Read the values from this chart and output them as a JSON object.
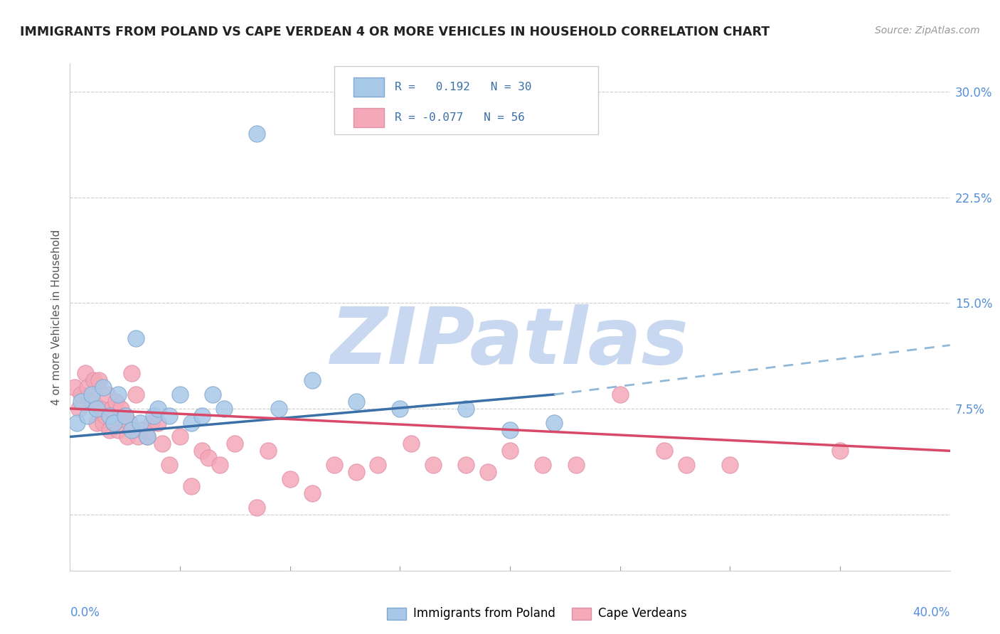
{
  "title": "IMMIGRANTS FROM POLAND VS CAPE VERDEAN 4 OR MORE VEHICLES IN HOUSEHOLD CORRELATION CHART",
  "source": "Source: ZipAtlas.com",
  "ylabel": "4 or more Vehicles in Household",
  "xlim": [
    0.0,
    40.0
  ],
  "ylim": [
    -4.0,
    32.0
  ],
  "ytick_positions": [
    0,
    7.5,
    15.0,
    22.5,
    30.0
  ],
  "ytick_labels": [
    "",
    "7.5%",
    "15.0%",
    "22.5%",
    "30.0%"
  ],
  "color_poland": "#a8c8e8",
  "color_cape_verde": "#f4a8b8",
  "trendline_poland_color": "#3a6fa8",
  "trendline_cape_verde_color": "#d84868",
  "trendline_poland_dashed_color": "#90b8d8",
  "watermark": "ZIPatlas",
  "watermark_color_zip": "#c8d8f0",
  "watermark_color_atlas": "#b8c8e0",
  "legend_label1": "Immigrants from Poland",
  "legend_label2": "Cape Verdeans",
  "poland_scatter": [
    [
      0.3,
      6.5
    ],
    [
      0.5,
      8.0
    ],
    [
      0.8,
      7.0
    ],
    [
      1.0,
      8.5
    ],
    [
      1.2,
      7.5
    ],
    [
      1.5,
      9.0
    ],
    [
      1.8,
      7.0
    ],
    [
      2.0,
      6.5
    ],
    [
      2.2,
      8.5
    ],
    [
      2.5,
      7.0
    ],
    [
      2.8,
      6.0
    ],
    [
      3.0,
      12.5
    ],
    [
      3.2,
      6.5
    ],
    [
      3.5,
      5.5
    ],
    [
      3.8,
      7.0
    ],
    [
      4.0,
      7.5
    ],
    [
      4.5,
      7.0
    ],
    [
      5.0,
      8.5
    ],
    [
      5.5,
      6.5
    ],
    [
      6.0,
      7.0
    ],
    [
      6.5,
      8.5
    ],
    [
      7.0,
      7.5
    ],
    [
      8.5,
      27.0
    ],
    [
      9.5,
      7.5
    ],
    [
      11.0,
      9.5
    ],
    [
      13.0,
      8.0
    ],
    [
      15.0,
      7.5
    ],
    [
      18.0,
      7.5
    ],
    [
      20.0,
      6.0
    ],
    [
      22.0,
      6.5
    ]
  ],
  "cape_verde_scatter": [
    [
      0.2,
      9.0
    ],
    [
      0.4,
      7.5
    ],
    [
      0.5,
      8.5
    ],
    [
      0.7,
      10.0
    ],
    [
      0.8,
      9.0
    ],
    [
      1.0,
      8.0
    ],
    [
      1.1,
      9.5
    ],
    [
      1.2,
      6.5
    ],
    [
      1.3,
      9.5
    ],
    [
      1.4,
      7.5
    ],
    [
      1.5,
      6.5
    ],
    [
      1.6,
      7.0
    ],
    [
      1.7,
      8.5
    ],
    [
      1.8,
      6.0
    ],
    [
      1.9,
      7.5
    ],
    [
      2.0,
      6.5
    ],
    [
      2.1,
      8.0
    ],
    [
      2.2,
      6.0
    ],
    [
      2.3,
      7.5
    ],
    [
      2.5,
      7.0
    ],
    [
      2.6,
      5.5
    ],
    [
      2.7,
      6.5
    ],
    [
      2.8,
      10.0
    ],
    [
      3.0,
      8.5
    ],
    [
      3.1,
      5.5
    ],
    [
      3.3,
      6.0
    ],
    [
      3.5,
      5.5
    ],
    [
      3.7,
      6.5
    ],
    [
      4.0,
      6.5
    ],
    [
      4.2,
      5.0
    ],
    [
      4.5,
      3.5
    ],
    [
      5.0,
      5.5
    ],
    [
      5.5,
      2.0
    ],
    [
      6.0,
      4.5
    ],
    [
      6.3,
      4.0
    ],
    [
      6.8,
      3.5
    ],
    [
      7.5,
      5.0
    ],
    [
      8.5,
      0.5
    ],
    [
      9.0,
      4.5
    ],
    [
      10.0,
      2.5
    ],
    [
      11.0,
      1.5
    ],
    [
      12.0,
      3.5
    ],
    [
      13.0,
      3.0
    ],
    [
      14.0,
      3.5
    ],
    [
      15.5,
      5.0
    ],
    [
      16.5,
      3.5
    ],
    [
      18.0,
      3.5
    ],
    [
      19.0,
      3.0
    ],
    [
      20.0,
      4.5
    ],
    [
      21.5,
      3.5
    ],
    [
      23.0,
      3.5
    ],
    [
      25.0,
      8.5
    ],
    [
      27.0,
      4.5
    ],
    [
      28.0,
      3.5
    ],
    [
      30.0,
      3.5
    ],
    [
      35.0,
      4.5
    ]
  ],
  "poland_trendline": {
    "x_start": 0.0,
    "x_solid_end": 22.0,
    "x_dashed_end": 40.0,
    "y_at_0": 5.5,
    "y_at_22": 8.5,
    "y_at_40": 12.0
  },
  "cape_trendline": {
    "x_start": 0.0,
    "x_end": 40.0,
    "y_at_0": 7.5,
    "y_at_40": 4.5
  }
}
